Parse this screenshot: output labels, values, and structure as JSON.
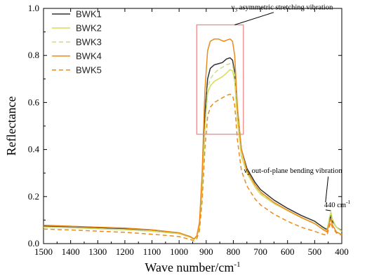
{
  "chart_data": {
    "type": "line",
    "xlabel": "Wave number/cm",
    "xlabel_sup": "-1",
    "ylabel": "Reflectance",
    "xlim": [
      1500,
      400
    ],
    "ylim": [
      0.0,
      1.0
    ],
    "x_ticks": [
      "1500",
      "1400",
      "1300",
      "1200",
      "1100",
      "1000",
      "900",
      "800",
      "700",
      "600",
      "500",
      "400"
    ],
    "y_ticks": [
      "0.0",
      "0.2",
      "0.4",
      "0.6",
      "0.8",
      "1.0"
    ],
    "legend_position": "top-left",
    "series": [
      {
        "name": "BWK1",
        "color": "#333333",
        "style": "solid",
        "points": [
          [
            1500,
            0.075
          ],
          [
            1400,
            0.072
          ],
          [
            1300,
            0.068
          ],
          [
            1200,
            0.064
          ],
          [
            1100,
            0.058
          ],
          [
            1000,
            0.045
          ],
          [
            960,
            0.03
          ],
          [
            945,
            0.02
          ],
          [
            935,
            0.03
          ],
          [
            925,
            0.08
          ],
          [
            915,
            0.25
          ],
          [
            905,
            0.55
          ],
          [
            895,
            0.7
          ],
          [
            885,
            0.745
          ],
          [
            870,
            0.76
          ],
          [
            855,
            0.765
          ],
          [
            840,
            0.77
          ],
          [
            825,
            0.785
          ],
          [
            812,
            0.79
          ],
          [
            803,
            0.78
          ],
          [
            795,
            0.73
          ],
          [
            785,
            0.56
          ],
          [
            770,
            0.4
          ],
          [
            750,
            0.32
          ],
          [
            720,
            0.26
          ],
          [
            700,
            0.23
          ],
          [
            650,
            0.185
          ],
          [
            600,
            0.15
          ],
          [
            550,
            0.12
          ],
          [
            500,
            0.095
          ],
          [
            470,
            0.07
          ],
          [
            455,
            0.06
          ],
          [
            445,
            0.1
          ],
          [
            440,
            0.12
          ],
          [
            435,
            0.095
          ],
          [
            420,
            0.07
          ],
          [
            400,
            0.055
          ]
        ]
      },
      {
        "name": "BWK2",
        "color": "#d9dc55",
        "style": "solid",
        "points": [
          [
            1500,
            0.07
          ],
          [
            1400,
            0.067
          ],
          [
            1300,
            0.063
          ],
          [
            1200,
            0.059
          ],
          [
            1100,
            0.053
          ],
          [
            1000,
            0.042
          ],
          [
            960,
            0.028
          ],
          [
            945,
            0.018
          ],
          [
            935,
            0.028
          ],
          [
            925,
            0.07
          ],
          [
            915,
            0.22
          ],
          [
            905,
            0.48
          ],
          [
            895,
            0.64
          ],
          [
            885,
            0.67
          ],
          [
            870,
            0.69
          ],
          [
            855,
            0.7
          ],
          [
            840,
            0.71
          ],
          [
            825,
            0.725
          ],
          [
            812,
            0.74
          ],
          [
            803,
            0.735
          ],
          [
            795,
            0.69
          ],
          [
            785,
            0.52
          ],
          [
            770,
            0.37
          ],
          [
            750,
            0.3
          ],
          [
            720,
            0.24
          ],
          [
            700,
            0.21
          ],
          [
            650,
            0.17
          ],
          [
            600,
            0.14
          ],
          [
            550,
            0.11
          ],
          [
            500,
            0.085
          ],
          [
            470,
            0.062
          ],
          [
            455,
            0.055
          ],
          [
            445,
            0.115
          ],
          [
            440,
            0.135
          ],
          [
            435,
            0.105
          ],
          [
            420,
            0.07
          ],
          [
            400,
            0.052
          ]
        ]
      },
      {
        "name": "BWK3",
        "color": "#c9df8c",
        "style": "dashed",
        "points": [
          [
            1500,
            0.07
          ],
          [
            1400,
            0.067
          ],
          [
            1300,
            0.063
          ],
          [
            1200,
            0.058
          ],
          [
            1100,
            0.052
          ],
          [
            1000,
            0.041
          ],
          [
            960,
            0.027
          ],
          [
            945,
            0.017
          ],
          [
            935,
            0.027
          ],
          [
            925,
            0.068
          ],
          [
            915,
            0.215
          ],
          [
            905,
            0.48
          ],
          [
            895,
            0.66
          ],
          [
            885,
            0.7
          ],
          [
            870,
            0.725
          ],
          [
            855,
            0.74
          ],
          [
            840,
            0.75
          ],
          [
            825,
            0.76
          ],
          [
            812,
            0.765
          ],
          [
            803,
            0.76
          ],
          [
            795,
            0.715
          ],
          [
            785,
            0.54
          ],
          [
            770,
            0.38
          ],
          [
            750,
            0.305
          ],
          [
            720,
            0.245
          ],
          [
            700,
            0.215
          ],
          [
            650,
            0.172
          ],
          [
            600,
            0.14
          ],
          [
            550,
            0.112
          ],
          [
            500,
            0.086
          ],
          [
            470,
            0.063
          ],
          [
            455,
            0.055
          ],
          [
            445,
            0.11
          ],
          [
            440,
            0.13
          ],
          [
            435,
            0.1
          ],
          [
            420,
            0.068
          ],
          [
            400,
            0.052
          ]
        ]
      },
      {
        "name": "BWK4",
        "color": "#ec8b1c",
        "style": "solid",
        "points": [
          [
            1500,
            0.078
          ],
          [
            1400,
            0.074
          ],
          [
            1300,
            0.07
          ],
          [
            1200,
            0.066
          ],
          [
            1100,
            0.059
          ],
          [
            1000,
            0.046
          ],
          [
            960,
            0.03
          ],
          [
            945,
            0.02
          ],
          [
            935,
            0.032
          ],
          [
            925,
            0.09
          ],
          [
            915,
            0.3
          ],
          [
            905,
            0.65
          ],
          [
            895,
            0.82
          ],
          [
            885,
            0.86
          ],
          [
            870,
            0.87
          ],
          [
            855,
            0.87
          ],
          [
            845,
            0.865
          ],
          [
            835,
            0.86
          ],
          [
            825,
            0.865
          ],
          [
            812,
            0.87
          ],
          [
            803,
            0.86
          ],
          [
            795,
            0.8
          ],
          [
            785,
            0.58
          ],
          [
            770,
            0.4
          ],
          [
            750,
            0.31
          ],
          [
            720,
            0.25
          ],
          [
            700,
            0.22
          ],
          [
            650,
            0.175
          ],
          [
            600,
            0.142
          ],
          [
            550,
            0.112
          ],
          [
            500,
            0.085
          ],
          [
            470,
            0.06
          ],
          [
            455,
            0.05
          ],
          [
            445,
            0.09
          ],
          [
            440,
            0.105
          ],
          [
            435,
            0.08
          ],
          [
            420,
            0.05
          ],
          [
            400,
            0.038
          ]
        ]
      },
      {
        "name": "BWK5",
        "color": "#ec8b1c",
        "style": "dashed",
        "points": [
          [
            1500,
            0.062
          ],
          [
            1400,
            0.058
          ],
          [
            1300,
            0.053
          ],
          [
            1200,
            0.048
          ],
          [
            1100,
            0.04
          ],
          [
            1000,
            0.03
          ],
          [
            960,
            0.018
          ],
          [
            945,
            0.012
          ],
          [
            935,
            0.02
          ],
          [
            925,
            0.055
          ],
          [
            915,
            0.18
          ],
          [
            905,
            0.4
          ],
          [
            895,
            0.54
          ],
          [
            885,
            0.58
          ],
          [
            870,
            0.6
          ],
          [
            855,
            0.61
          ],
          [
            840,
            0.62
          ],
          [
            825,
            0.63
          ],
          [
            812,
            0.635
          ],
          [
            803,
            0.63
          ],
          [
            795,
            0.59
          ],
          [
            785,
            0.44
          ],
          [
            770,
            0.31
          ],
          [
            750,
            0.245
          ],
          [
            720,
            0.19
          ],
          [
            700,
            0.165
          ],
          [
            650,
            0.125
          ],
          [
            600,
            0.095
          ],
          [
            550,
            0.07
          ],
          [
            500,
            0.052
          ],
          [
            470,
            0.04
          ],
          [
            455,
            0.035
          ],
          [
            445,
            0.075
          ],
          [
            440,
            0.09
          ],
          [
            435,
            0.07
          ],
          [
            420,
            0.045
          ],
          [
            400,
            0.035
          ]
        ]
      }
    ],
    "highlight_box": {
      "x": [
        935,
        763
      ],
      "y": [
        0.465,
        0.93
      ],
      "color": "#f08a8a"
    },
    "annotations": [
      {
        "id": "v3",
        "symbol": "ν",
        "sub": "3",
        "text": " asymmetric stretching vibration",
        "anchor_data": [
          795,
          0.93
        ],
        "label_data": [
          620,
          0.995
        ]
      },
      {
        "id": "v2",
        "symbol": "ν",
        "sub": "2",
        "text": " out-of-plane bending vibration",
        "label_data": [
          580,
          0.3
        ]
      },
      {
        "id": "p440",
        "text": "440 cm",
        "sup": "-1",
        "anchor_data": [
          440,
          0.14
        ],
        "label_data": [
          465,
          0.155
        ]
      }
    ]
  }
}
